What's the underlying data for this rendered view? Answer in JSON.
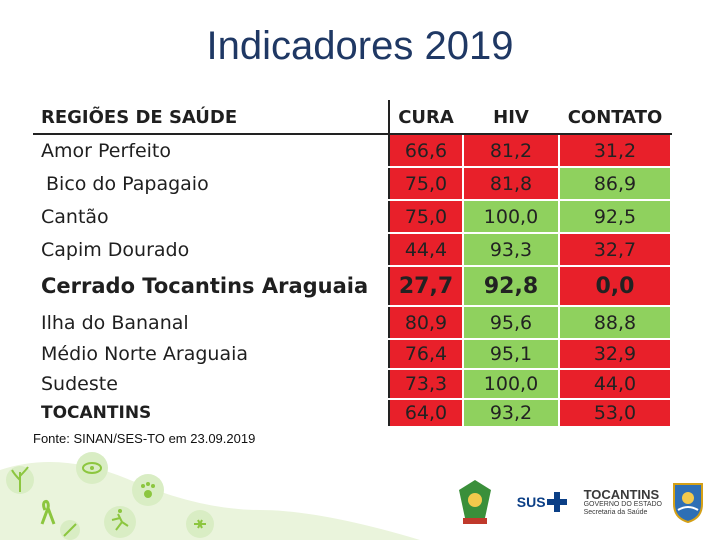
{
  "title": "Indicadores 2019",
  "table": {
    "headers": [
      "REGIÕES DE SAÚDE",
      "CURA",
      "HIV",
      "CONTATO"
    ],
    "rows": [
      {
        "region": "Amor Perfeito",
        "cura": "66,6",
        "hiv": "81,2",
        "contato": "31,2"
      },
      {
        "region": "Bico do Papagaio",
        "cura": "75,0",
        "hiv": "81,8",
        "contato": "86,9"
      },
      {
        "region": "Cantão",
        "cura": "75,0",
        "hiv": "100,0",
        "contato": "92,5"
      },
      {
        "region": "Capim Dourado",
        "cura": "44,4",
        "hiv": "93,3",
        "contato": "32,7"
      },
      {
        "region": "Cerrado Tocantins Araguaia",
        "cura": "27,7",
        "hiv": "92,8",
        "contato": "0,0"
      },
      {
        "region": "Ilha do Bananal",
        "cura": "80,9",
        "hiv": "95,6",
        "contato": "88,8"
      },
      {
        "region": "Médio Norte Araguaia",
        "cura": "76,4",
        "hiv": "95,1",
        "contato": "32,9"
      },
      {
        "region": "Sudeste",
        "cura": "73,3",
        "hiv": "100,0",
        "contato": "44,0"
      },
      {
        "region": "TOCANTINS",
        "cura": "64,0",
        "hiv": "93,2",
        "contato": "53,0"
      }
    ]
  },
  "source": "Fonte: SINAN/SES-TO em 23.09.2019",
  "logos": {
    "sus": "SUS",
    "state_name": "TOCANTINS",
    "state_sub": "GOVERNO DO ESTADO",
    "secretariat": "Secretaria da Saúde"
  },
  "colors": {
    "title": "#1f3864",
    "cell_red": "#e8202a",
    "cell_green": "#8fd15e",
    "deco_green": "#8cc63f"
  }
}
